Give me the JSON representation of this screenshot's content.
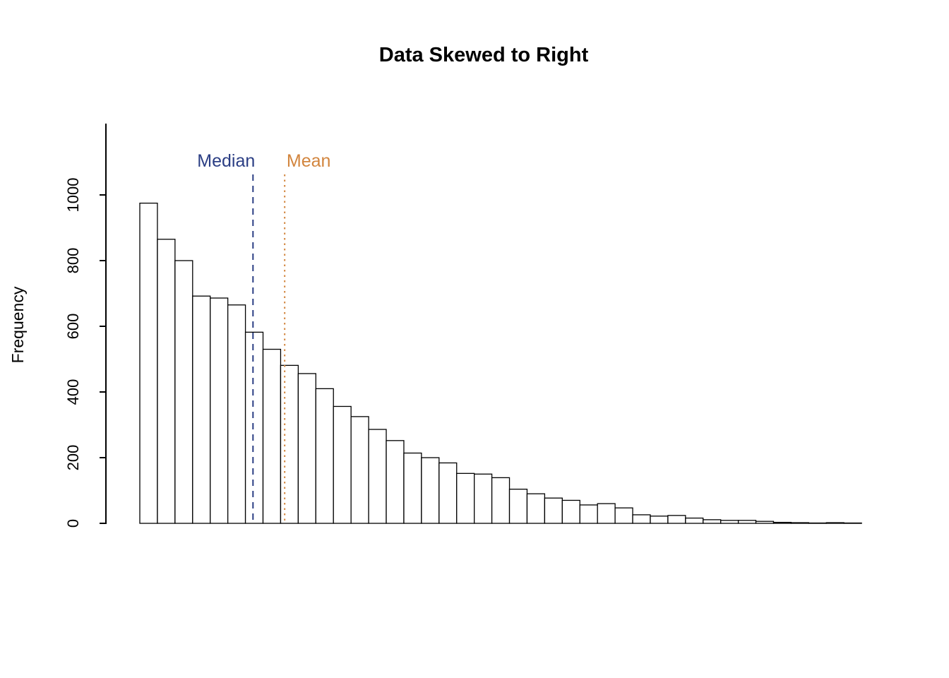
{
  "chart_data": {
    "type": "bar",
    "subtype": "histogram",
    "title": "Data Skewed to Right",
    "xlabel": "",
    "ylabel": "Frequency",
    "ylim": [
      0,
      1200
    ],
    "yticks": [
      0,
      200,
      400,
      600,
      800,
      1000
    ],
    "grid": false,
    "legend_position": "none",
    "bar_fill": "#ffffff",
    "bar_stroke": "#000000",
    "values": [
      975,
      865,
      800,
      692,
      686,
      665,
      582,
      530,
      481,
      456,
      410,
      356,
      325,
      286,
      252,
      214,
      200,
      184,
      152,
      150,
      139,
      104,
      90,
      77,
      70,
      56,
      60,
      47,
      26,
      22,
      24,
      16,
      11,
      9,
      9,
      6,
      3,
      2,
      1,
      2,
      1
    ],
    "annotations": [
      {
        "label": "Median",
        "color": "#2b3e84",
        "line_style": "dashed",
        "bar_pos": 6.43,
        "label_dx": -38
      },
      {
        "label": "Mean",
        "color": "#d2853e",
        "line_style": "dotted",
        "bar_pos": 8.23,
        "label_dx": 34
      }
    ]
  }
}
